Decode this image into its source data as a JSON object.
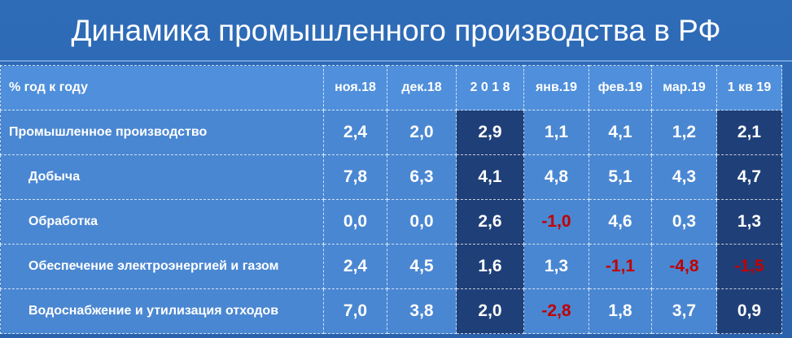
{
  "title": "Динамика промышленного производства в РФ",
  "table": {
    "header": [
      "% год к году",
      "ноя.18",
      "дек.18",
      "2 0 1 8",
      "янв.19",
      "фев.19",
      "мар.19",
      "1 кв 19"
    ],
    "rows": [
      [
        "Промышленное производство",
        "2,4",
        "2,0",
        "2,9",
        "1,1",
        "4,1",
        "1,2",
        "2,1"
      ],
      [
        "Добыча",
        "7,8",
        "6,3",
        "4,1",
        "4,8",
        "5,1",
        "4,3",
        "4,7"
      ],
      [
        "Обработка",
        "0,0",
        "0,0",
        "2,6",
        "-1,0",
        "4,6",
        "0,3",
        "1,3"
      ],
      [
        "Обеспечение электроэнергией и газом",
        "2,4",
        "4,5",
        "1,6",
        "1,3",
        "-1,1",
        "-4,8",
        "-1,5"
      ],
      [
        "Водоснабжение и утилизация отходов",
        "7,0",
        "3,8",
        "2,0",
        "-2,8",
        "1,8",
        "3,7",
        "0,9"
      ]
    ]
  }
}
